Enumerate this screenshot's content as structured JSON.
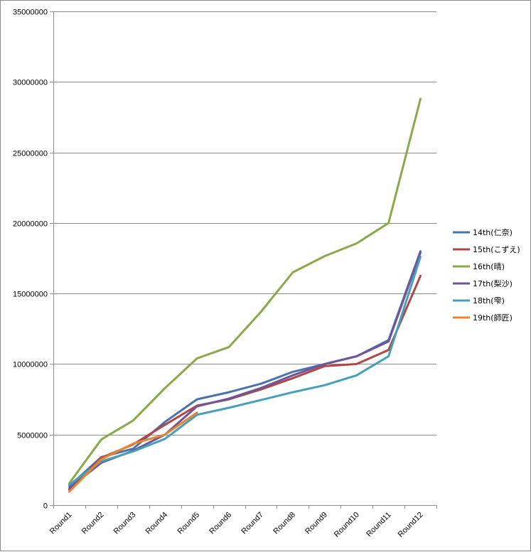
{
  "chart_data": {
    "type": "line",
    "title": "",
    "xlabel": "",
    "ylabel": "",
    "ylim": [
      0,
      35000000
    ],
    "yticks": [
      0,
      5000000,
      10000000,
      15000000,
      20000000,
      25000000,
      30000000,
      35000000
    ],
    "grid": "horizontal major gridlines",
    "legend_position": "right",
    "categories": [
      "Round1",
      "Round2",
      "Round3",
      "Round4",
      "Round5",
      "Round6",
      "Round7",
      "Round8",
      "Round9",
      "Round10",
      "Round11",
      "Round12"
    ],
    "series": [
      {
        "name": "14th(仁奈)",
        "color": "#4A72B0",
        "values": [
          1350000,
          3400000,
          4000000,
          5900000,
          7500000,
          8000000,
          8600000,
          9450000,
          10000000,
          10550000,
          11700000,
          18000000
        ]
      },
      {
        "name": "15th(こずえ)",
        "color": "#B14644",
        "values": [
          1100000,
          3350000,
          4300000,
          5700000,
          7050000,
          7500000,
          8200000,
          9000000,
          9850000,
          10000000,
          11000000,
          16250000
        ]
      },
      {
        "name": "16th(晴)",
        "color": "#8AAA4A",
        "values": [
          1550000,
          4650000,
          6000000,
          8300000,
          10400000,
          11200000,
          13700000,
          16500000,
          17650000,
          18550000,
          20000000,
          28800000
        ]
      },
      {
        "name": "17th(梨沙)",
        "color": "#6F559A",
        "values": [
          1200000,
          3000000,
          3850000,
          5000000,
          7000000,
          7550000,
          8300000,
          9200000,
          10000000,
          10550000,
          11600000,
          17900000
        ]
      },
      {
        "name": "18th(雫)",
        "color": "#44A0BB",
        "values": [
          1450000,
          3100000,
          3800000,
          4700000,
          6400000,
          6900000,
          7450000,
          8000000,
          8500000,
          9200000,
          10550000,
          17600000
        ]
      },
      {
        "name": "19th(師匠)",
        "color": "#E8852E",
        "values": [
          950000,
          3250000,
          4350000,
          5000000,
          6550000,
          null,
          null,
          null,
          null,
          null,
          null,
          null
        ]
      }
    ]
  }
}
